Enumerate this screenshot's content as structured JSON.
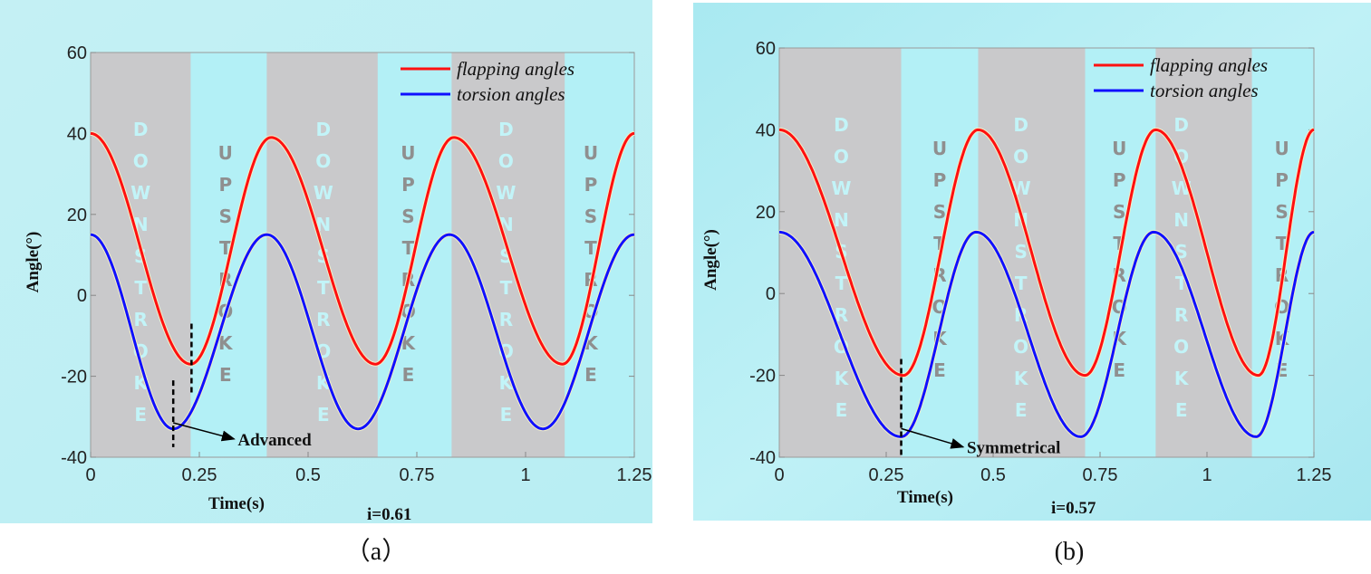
{
  "chart_data": [
    {
      "type": "line",
      "caption": "（a）",
      "xlabel": "Time(s)",
      "ylabel": "Angle(°)",
      "note": "i=0.61",
      "xlim": [
        0,
        1.25
      ],
      "ylim": [
        -40,
        60
      ],
      "xticks": [
        "0",
        "0.25",
        "0.5",
        "0.75",
        "1",
        "1.25"
      ],
      "xtick_values": [
        0,
        0.25,
        0.5,
        0.75,
        1,
        1.25
      ],
      "yticks": [
        "-40",
        "-20",
        "0",
        "20",
        "40",
        "60"
      ],
      "ytick_values": [
        -40,
        -20,
        0,
        20,
        40,
        60
      ],
      "legend_position": "top-right",
      "series": [
        {
          "name": "flapping angles",
          "color": "#ff1010",
          "extrema": [
            [
              0,
              40
            ],
            [
              0.23,
              -17
            ],
            [
              0.415,
              39
            ],
            [
              0.655,
              -17
            ],
            [
              0.835,
              39
            ],
            [
              1.085,
              -17
            ],
            [
              1.25,
              40
            ]
          ]
        },
        {
          "name": "torsion angles",
          "color": "#1010ff",
          "extrema": [
            [
              0,
              15
            ],
            [
              0.19,
              -33
            ],
            [
              0.405,
              15
            ],
            [
              0.615,
              -33
            ],
            [
              0.825,
              15
            ],
            [
              1.04,
              -33
            ],
            [
              1.25,
              15
            ]
          ]
        }
      ],
      "downstroke_bands": [
        [
          0,
          0.23
        ],
        [
          0.405,
          0.66
        ],
        [
          0.83,
          1.09
        ]
      ],
      "band_label_down": "DOWNSTROKE",
      "band_label_up": "UPSTROKE",
      "down_label_times": [
        0.115,
        0.535,
        0.955
      ],
      "up_label_times": [
        0.31,
        0.73,
        1.15
      ],
      "markers": [
        {
          "t": 0.232,
          "from": -7,
          "to": -24
        },
        {
          "t": 0.19,
          "from": -21,
          "to": -37.5
        }
      ],
      "annotation": {
        "text": "Advanced",
        "from": [
          0.19,
          -31.5
        ],
        "to": [
          0.33,
          -35.5
        ]
      }
    },
    {
      "type": "line",
      "caption": "(b)",
      "xlabel": "Time(s)",
      "ylabel": "Angle(°)",
      "note": "i=0.57",
      "xlim": [
        0,
        1.25
      ],
      "ylim": [
        -40,
        60
      ],
      "xticks": [
        "0",
        "0.25",
        "0.5",
        "0.75",
        "1",
        "1.25"
      ],
      "xtick_values": [
        0,
        0.25,
        0.5,
        0.75,
        1,
        1.25
      ],
      "yticks": [
        "-40",
        "-20",
        "0",
        "20",
        "40",
        "60"
      ],
      "ytick_values": [
        -40,
        -20,
        0,
        20,
        40,
        60
      ],
      "legend_position": "top-right",
      "series": [
        {
          "name": "flapping angles",
          "color": "#ff1010",
          "extrema": [
            [
              0,
              40
            ],
            [
              0.29,
              -20
            ],
            [
              0.465,
              40
            ],
            [
              0.715,
              -20
            ],
            [
              0.88,
              40
            ],
            [
              1.12,
              -20
            ],
            [
              1.25,
              40
            ]
          ]
        },
        {
          "name": "torsion angles",
          "color": "#1010ff",
          "extrema": [
            [
              0,
              15
            ],
            [
              0.285,
              -35
            ],
            [
              0.46,
              15
            ],
            [
              0.705,
              -35
            ],
            [
              0.875,
              15
            ],
            [
              1.115,
              -35
            ],
            [
              1.25,
              15
            ]
          ]
        }
      ],
      "downstroke_bands": [
        [
          0,
          0.285
        ],
        [
          0.465,
          0.715
        ],
        [
          0.88,
          1.105
        ]
      ],
      "band_label_down": "DOWNSTROKE",
      "band_label_up": "UPSTROKE",
      "down_label_times": [
        0.145,
        0.565,
        0.94
      ],
      "up_label_times": [
        0.375,
        0.795,
        1.175
      ],
      "markers": [
        {
          "t": 0.285,
          "from": -16,
          "to": -40
        }
      ],
      "annotation": {
        "text": "Symmetrical",
        "from": [
          0.285,
          -33
        ],
        "to": [
          0.43,
          -37.5
        ]
      }
    }
  ]
}
